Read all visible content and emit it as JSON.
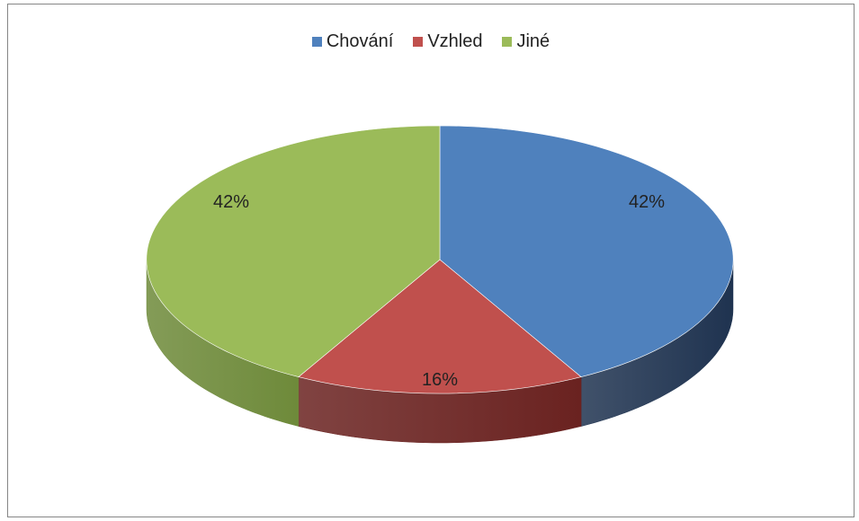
{
  "chart_data": {
    "type": "pie",
    "style": "3d",
    "legend_position": "top",
    "series": [
      {
        "label": "Chování",
        "value": 42,
        "data_label": "42%",
        "color": "#4F81BD",
        "side_color": "#1F3350"
      },
      {
        "label": "Vzhled",
        "value": 16,
        "data_label": "16%",
        "color": "#C0504D",
        "side_color": "#6A2220"
      },
      {
        "label": "Jiné",
        "value": 42,
        "data_label": "42%",
        "color": "#9BBB59",
        "side_color": "#6E8A3A"
      }
    ]
  }
}
